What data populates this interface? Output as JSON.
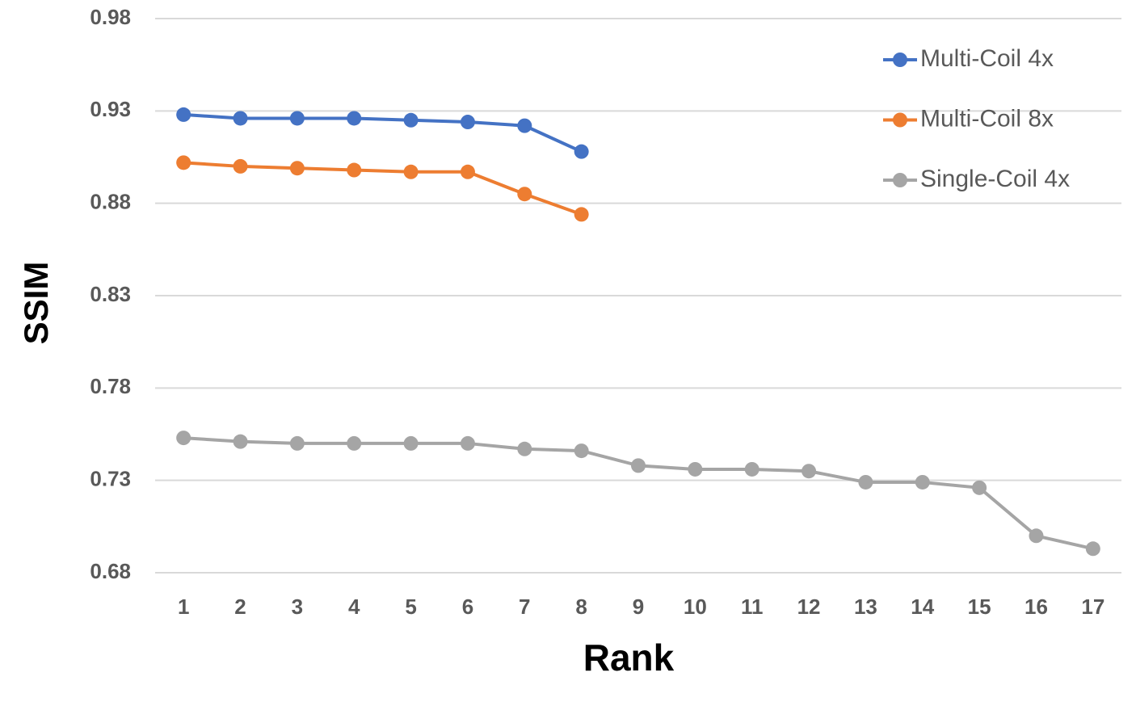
{
  "chart_data": {
    "type": "line",
    "x_label": "Rank",
    "y_label": "SSIM",
    "categories": [
      "1",
      "2",
      "3",
      "4",
      "5",
      "6",
      "7",
      "8",
      "9",
      "10",
      "11",
      "12",
      "13",
      "14",
      "15",
      "16",
      "17"
    ],
    "series": [
      {
        "name": "Multi-Coil 4x",
        "color": "#4472c4",
        "values": [
          0.928,
          0.926,
          0.926,
          0.926,
          0.925,
          0.924,
          0.922,
          0.908,
          null,
          null,
          null,
          null,
          null,
          null,
          null,
          null,
          null
        ]
      },
      {
        "name": "Multi-Coil 8x",
        "color": "#ed7d31",
        "values": [
          0.902,
          0.9,
          0.899,
          0.898,
          0.897,
          0.897,
          0.885,
          0.874,
          null,
          null,
          null,
          null,
          null,
          null,
          null,
          null,
          null
        ]
      },
      {
        "name": "Single-Coil 4x",
        "color": "#a5a5a5",
        "values": [
          0.753,
          0.751,
          0.75,
          0.75,
          0.75,
          0.75,
          0.747,
          0.746,
          0.738,
          0.736,
          0.736,
          0.735,
          0.729,
          0.729,
          0.726,
          0.7,
          0.693
        ]
      }
    ],
    "ylim": [
      0.68,
      0.98
    ],
    "yticks": [
      0.68,
      0.73,
      0.78,
      0.83,
      0.88,
      0.93,
      0.98
    ],
    "grid": true,
    "legend": "top-right"
  }
}
